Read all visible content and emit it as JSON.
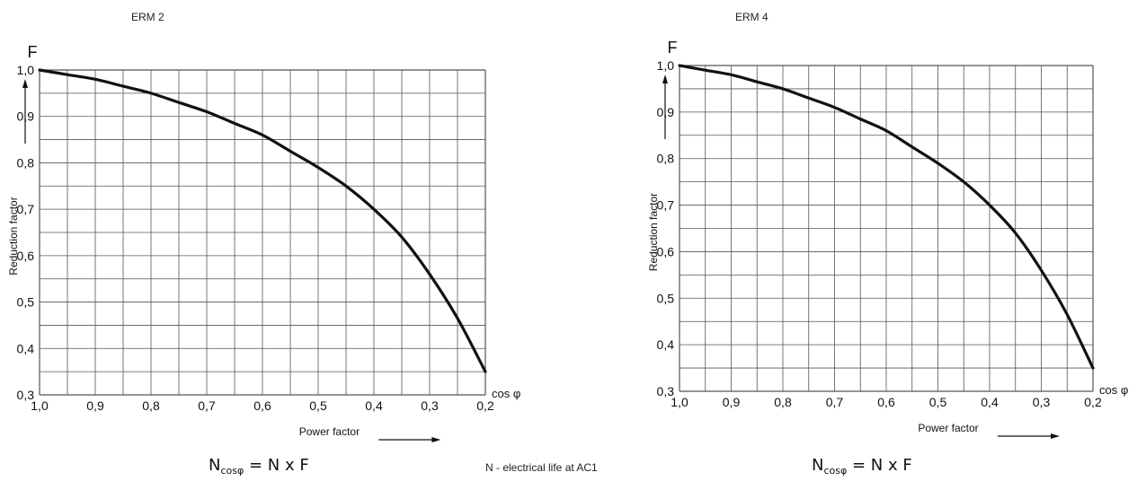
{
  "chart_data": [
    {
      "type": "line",
      "title": "ERM 2",
      "ylabel": "Reduction factor",
      "y_symbol": "F",
      "xlabel": "Power factor",
      "x_symbol": "cos φ",
      "x_reversed": true,
      "xlim": [
        1.0,
        0.2
      ],
      "ylim": [
        0.3,
        1.0
      ],
      "x_ticks": [
        "1,0",
        "0,9",
        "0,8",
        "0,7",
        "0,6",
        "0,5",
        "0,4",
        "0,3",
        "0,2"
      ],
      "y_ticks": [
        "0,3",
        "0,4",
        "0,5",
        "0,6",
        "0,7",
        "0,8",
        "0,9",
        "1,0"
      ],
      "grid": true,
      "series": [
        {
          "x": [
            1.0,
            0.95,
            0.9,
            0.85,
            0.8,
            0.75,
            0.7,
            0.65,
            0.6,
            0.55,
            0.5,
            0.45,
            0.4,
            0.35,
            0.3,
            0.25,
            0.2
          ],
          "y": [
            1.0,
            0.99,
            0.98,
            0.965,
            0.95,
            0.93,
            0.91,
            0.885,
            0.86,
            0.825,
            0.79,
            0.75,
            0.7,
            0.64,
            0.56,
            0.465,
            0.35
          ]
        }
      ]
    },
    {
      "type": "line",
      "title": "ERM 4",
      "ylabel": "Reduction factor",
      "y_symbol": "F",
      "xlabel": "Power factor",
      "x_symbol": "cos φ",
      "x_reversed": true,
      "xlim": [
        1.0,
        0.2
      ],
      "ylim": [
        0.3,
        1.0
      ],
      "x_ticks": [
        "1,0",
        "0,9",
        "0,8",
        "0,7",
        "0,6",
        "0,5",
        "0,4",
        "0,3",
        "0,2"
      ],
      "y_ticks": [
        "0,3",
        "0,4",
        "0,5",
        "0,6",
        "0,7",
        "0,8",
        "0,9",
        "1,0"
      ],
      "grid": true,
      "series": [
        {
          "x": [
            1.0,
            0.95,
            0.9,
            0.85,
            0.8,
            0.75,
            0.7,
            0.65,
            0.6,
            0.55,
            0.5,
            0.45,
            0.4,
            0.35,
            0.3,
            0.25,
            0.2
          ],
          "y": [
            1.0,
            0.99,
            0.98,
            0.965,
            0.95,
            0.93,
            0.91,
            0.885,
            0.86,
            0.825,
            0.79,
            0.75,
            0.7,
            0.64,
            0.56,
            0.465,
            0.35
          ]
        }
      ]
    }
  ],
  "formula": {
    "lhs": "N",
    "subscript": "cosφ",
    "rhs": "= N x F"
  },
  "footnote": "N - electrical life at AC1"
}
